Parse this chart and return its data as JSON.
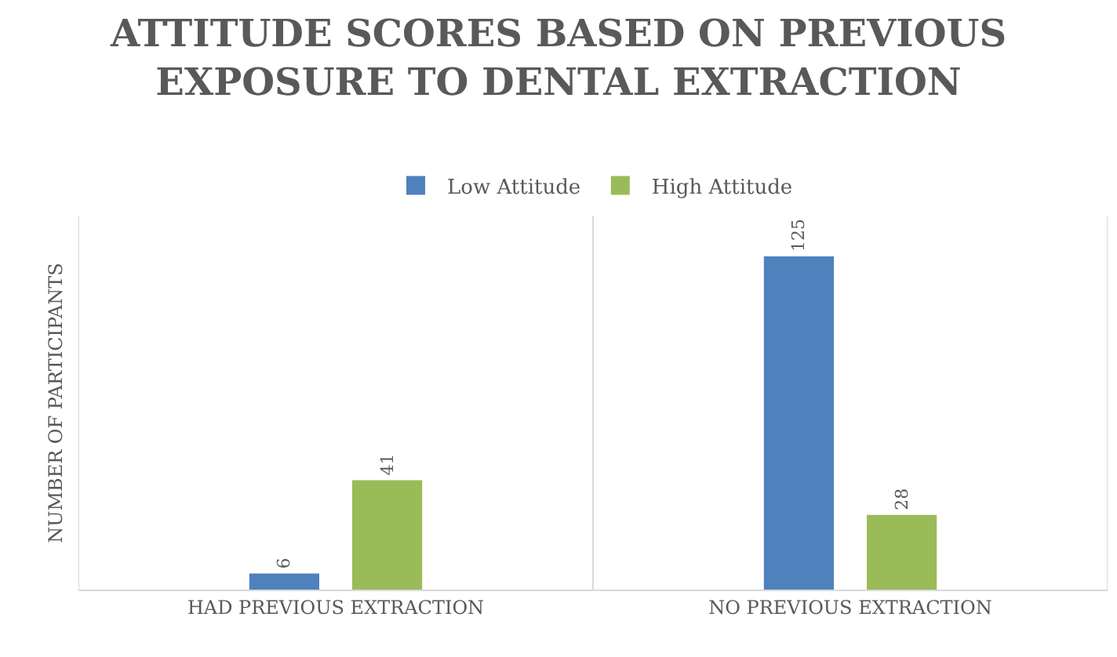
{
  "chart_data": {
    "type": "bar",
    "title": "ATTITUDE SCORES BASED ON PREVIOUS EXPOSURE TO DENTAL EXTRACTION",
    "ylabel": "NUMBER OF PARTICIPANTS",
    "categories": [
      "HAD PREVIOUS EXTRACTION",
      "NO PREVIOUS EXTRACTION"
    ],
    "series": [
      {
        "name": "Low Attitude",
        "color": "#4f81bd",
        "values": [
          6,
          125
        ]
      },
      {
        "name": "High Attitude",
        "color": "#9bbb59",
        "values": [
          41,
          28
        ]
      }
    ],
    "ylim": [
      0,
      140
    ],
    "data_labels": true,
    "grid": "x",
    "legend": "top",
    "tick_labels": "x"
  }
}
